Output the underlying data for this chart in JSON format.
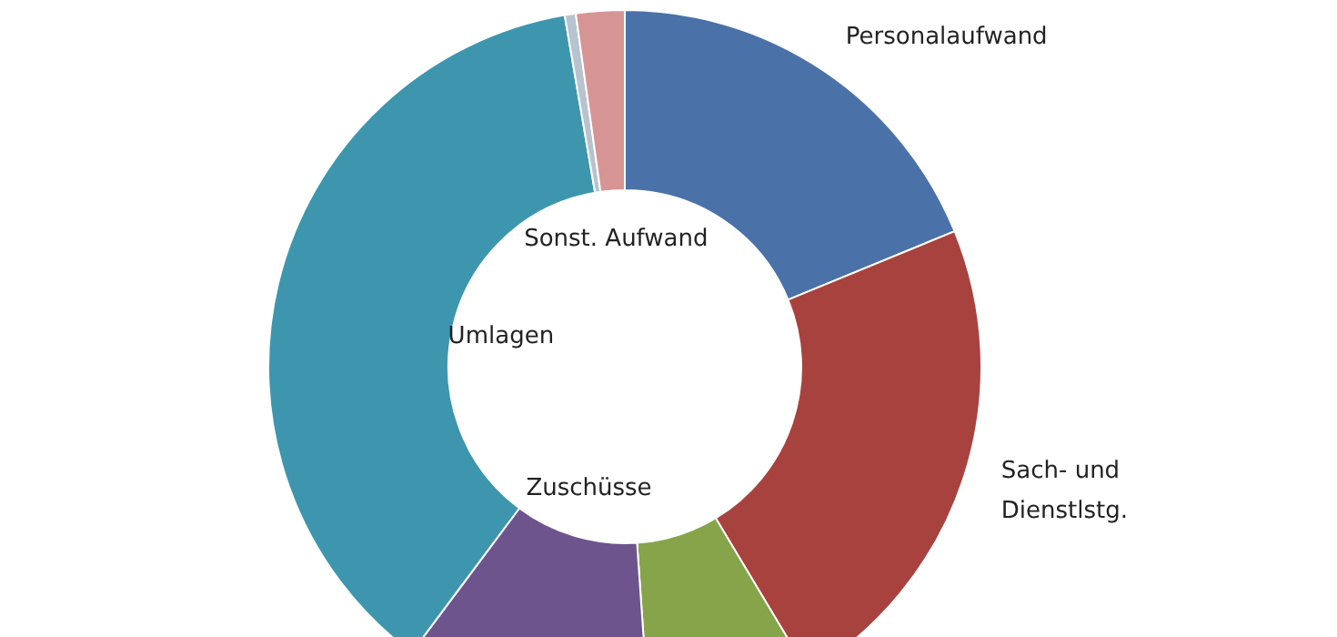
{
  "chart_data": {
    "type": "donut",
    "categories": [
      "Personalaufwand",
      "Sach- und Dienstlstg.",
      null,
      "Zuschüsse",
      "Umlagen",
      null,
      "Sonst. Aufwand"
    ],
    "values": [
      18.8,
      22.6,
      7.5,
      11.3,
      37.1,
      0.5,
      2.2
    ],
    "colors": [
      "#4a72a8",
      "#a8423f",
      "#86a44a",
      "#6e548d",
      "#3d96ae",
      "#b7c3cf",
      "#d69594"
    ]
  }
}
